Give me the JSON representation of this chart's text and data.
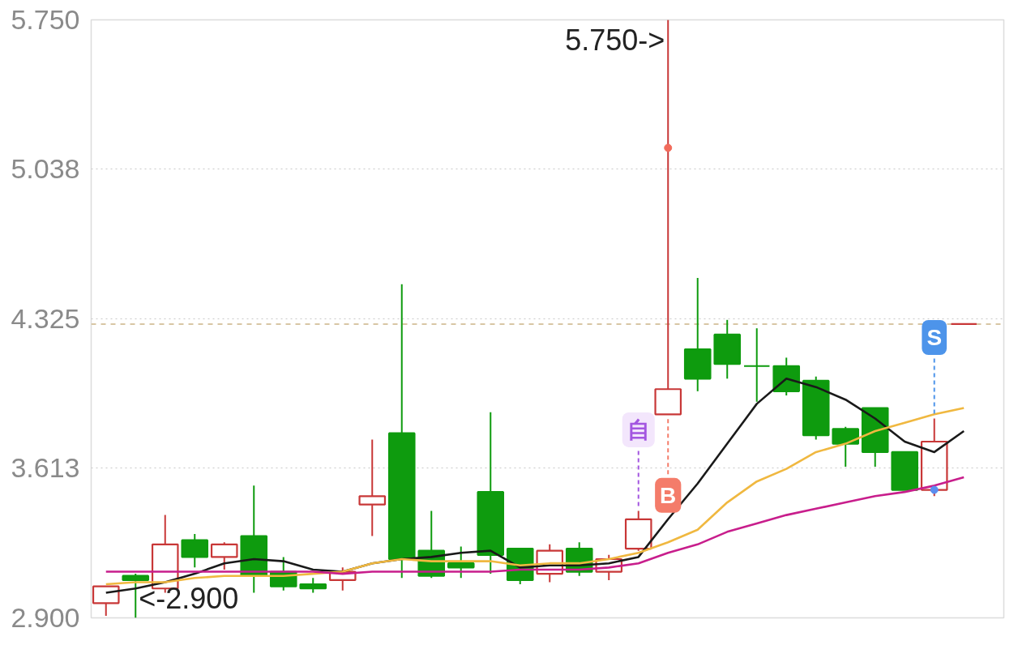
{
  "chart_data": {
    "type": "candlestick",
    "categories": [
      null,
      null,
      null,
      null,
      null,
      null,
      null,
      null,
      null,
      null,
      null,
      null,
      null,
      null,
      null,
      null,
      null,
      null,
      null,
      null,
      null,
      null,
      null,
      null,
      null,
      null,
      null,
      null,
      null,
      null
    ],
    "ohlc": [
      [
        2.97,
        3.05,
        2.91,
        3.05
      ],
      [
        3.1,
        3.11,
        2.9,
        3.08
      ],
      [
        3.04,
        3.39,
        3.02,
        3.25
      ],
      [
        3.27,
        3.3,
        3.14,
        3.19
      ],
      [
        3.19,
        3.26,
        3.13,
        3.25
      ],
      [
        3.29,
        3.53,
        3.02,
        3.1
      ],
      [
        3.12,
        3.19,
        3.03,
        3.05
      ],
      [
        3.06,
        3.09,
        3.02,
        3.04
      ],
      [
        3.08,
        3.14,
        3.03,
        3.12
      ],
      [
        3.44,
        3.75,
        3.29,
        3.48
      ],
      [
        3.78,
        4.49,
        3.09,
        3.18
      ],
      [
        3.22,
        3.41,
        3.09,
        3.1
      ],
      [
        3.16,
        3.24,
        3.09,
        3.14
      ],
      [
        3.5,
        3.88,
        3.11,
        3.2
      ],
      [
        3.23,
        3.23,
        3.06,
        3.08
      ],
      [
        3.11,
        3.25,
        3.07,
        3.22
      ],
      [
        3.23,
        3.26,
        3.1,
        3.12
      ],
      [
        3.12,
        3.2,
        3.08,
        3.18
      ],
      [
        3.23,
        3.41,
        3.22,
        3.37
      ],
      [
        3.87,
        5.75,
        3.87,
        3.99
      ],
      [
        4.18,
        4.52,
        3.98,
        4.04
      ],
      [
        4.25,
        4.32,
        4.04,
        4.11
      ],
      [
        4.1,
        4.28,
        3.93,
        4.1
      ],
      [
        4.1,
        4.14,
        3.96,
        3.98
      ],
      [
        4.03,
        4.05,
        3.75,
        3.77
      ],
      [
        3.8,
        3.81,
        3.62,
        3.73
      ],
      [
        3.9,
        3.9,
        3.62,
        3.69
      ],
      [
        3.69,
        3.69,
        3.51,
        3.51
      ],
      [
        3.51,
        3.85,
        3.48,
        3.74
      ],
      [
        4.3,
        4.3,
        4.3,
        4.3
      ]
    ],
    "colors": [
      "#c83737",
      "#0e9b0e",
      "#c83737",
      "#0e9b0e",
      "#c83737",
      "#0e9b0e",
      "#0e9b0e",
      "#0e9b0e",
      "#c83737",
      "#c83737",
      "#0e9b0e",
      "#0e9b0e",
      "#0e9b0e",
      "#0e9b0e",
      "#0e9b0e",
      "#c83737",
      "#0e9b0e",
      "#c83737",
      "#c83737",
      "#c83737",
      "#0e9b0e",
      "#0e9b0e",
      "#0e9b0e",
      "#0e9b0e",
      "#0e9b0e",
      "#0e9b0e",
      "#0e9b0e",
      "#0e9b0e",
      "#c83737",
      "#c83737"
    ],
    "series": [
      {
        "type": "line",
        "color": "#1a1a1a",
        "values": [
          3.02,
          3.04,
          3.07,
          3.11,
          3.16,
          3.18,
          3.17,
          3.13,
          3.12,
          3.16,
          3.18,
          3.19,
          3.21,
          3.22,
          3.14,
          3.15,
          3.15,
          3.16,
          3.19,
          3.37,
          3.54,
          3.73,
          3.92,
          4.04,
          4.0,
          3.94,
          3.85,
          3.74,
          3.69,
          3.79
        ]
      },
      {
        "type": "line",
        "color": "#f0b840",
        "values": [
          3.06,
          3.07,
          3.07,
          3.09,
          3.1,
          3.1,
          3.1,
          3.11,
          3.12,
          3.16,
          3.18,
          3.17,
          3.17,
          3.17,
          3.15,
          3.16,
          3.16,
          3.18,
          3.21,
          3.26,
          3.32,
          3.45,
          3.55,
          3.61,
          3.69,
          3.73,
          3.79,
          3.83,
          3.87,
          3.9
        ]
      },
      {
        "type": "line",
        "color": "#c81e8c",
        "values": [
          3.12,
          3.12,
          3.12,
          3.12,
          3.12,
          3.12,
          3.12,
          3.12,
          3.11,
          3.12,
          3.12,
          3.12,
          3.12,
          3.12,
          3.13,
          3.13,
          3.13,
          3.14,
          3.16,
          3.21,
          3.25,
          3.31,
          3.35,
          3.39,
          3.42,
          3.45,
          3.48,
          3.5,
          3.53,
          3.57
        ]
      },
      {
        "type": "scatter",
        "marker": "circle",
        "color": "#f26b5b",
        "values": [
          null,
          null,
          null,
          null,
          null,
          null,
          null,
          null,
          null,
          null,
          null,
          null,
          null,
          null,
          null,
          null,
          null,
          null,
          null,
          5.14,
          null,
          null,
          null,
          null,
          null,
          null,
          null,
          null,
          null,
          null
        ]
      },
      {
        "type": "scatter",
        "marker": "circle",
        "color": "#5b8def",
        "values": [
          null,
          null,
          null,
          null,
          null,
          null,
          null,
          null,
          null,
          null,
          null,
          null,
          null,
          null,
          null,
          null,
          null,
          null,
          null,
          null,
          null,
          null,
          null,
          null,
          null,
          null,
          null,
          null,
          3.51,
          null
        ]
      }
    ],
    "ylim": [
      2.9,
      5.75
    ],
    "yticks": [
      {
        "value": 2.9,
        "label": "2.900"
      },
      3.613,
      4.325,
      5.038,
      {
        "value": 5.75,
        "label": "5.750"
      }
    ],
    "grid": "y",
    "ref_lines": [
      {
        "axis": "y",
        "value": 4.3,
        "color": "#d8c6a4",
        "line_style": "dashed"
      }
    ],
    "annotations": [
      "5.750->",
      "<-2.900",
      "自",
      "B",
      "S"
    ]
  }
}
